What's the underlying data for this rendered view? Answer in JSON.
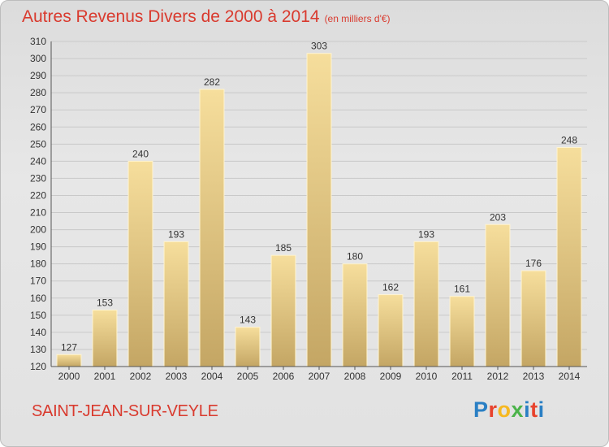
{
  "header": {
    "title": "Autres Revenus Divers de 2000 à 2014",
    "unit": "(en milliers d'€)"
  },
  "footer": {
    "city": "SAINT-JEAN-SUR-VEYLE",
    "logo_letters": [
      "P",
      "r",
      "o",
      "x",
      "i",
      "t",
      "i"
    ],
    "logo_colors": [
      "#2a7fc4",
      "#e8432d",
      "#f6b820",
      "#4bb34a",
      "#2a7fc4",
      "#e8432d",
      "#2a7fc4"
    ]
  },
  "chart_data": {
    "type": "bar",
    "categories": [
      "2000",
      "2001",
      "2002",
      "2003",
      "2004",
      "2005",
      "2006",
      "2007",
      "2008",
      "2009",
      "2010",
      "2011",
      "2012",
      "2013",
      "2014"
    ],
    "values": [
      127,
      153,
      240,
      193,
      282,
      143,
      185,
      303,
      180,
      162,
      193,
      161,
      203,
      176,
      248
    ],
    "ylim": [
      120,
      310
    ],
    "yticks": [
      120,
      130,
      140,
      150,
      160,
      170,
      180,
      190,
      200,
      210,
      220,
      230,
      240,
      250,
      260,
      270,
      280,
      290,
      300,
      310
    ],
    "grid": true,
    "bar_color": "#e3c67f"
  }
}
